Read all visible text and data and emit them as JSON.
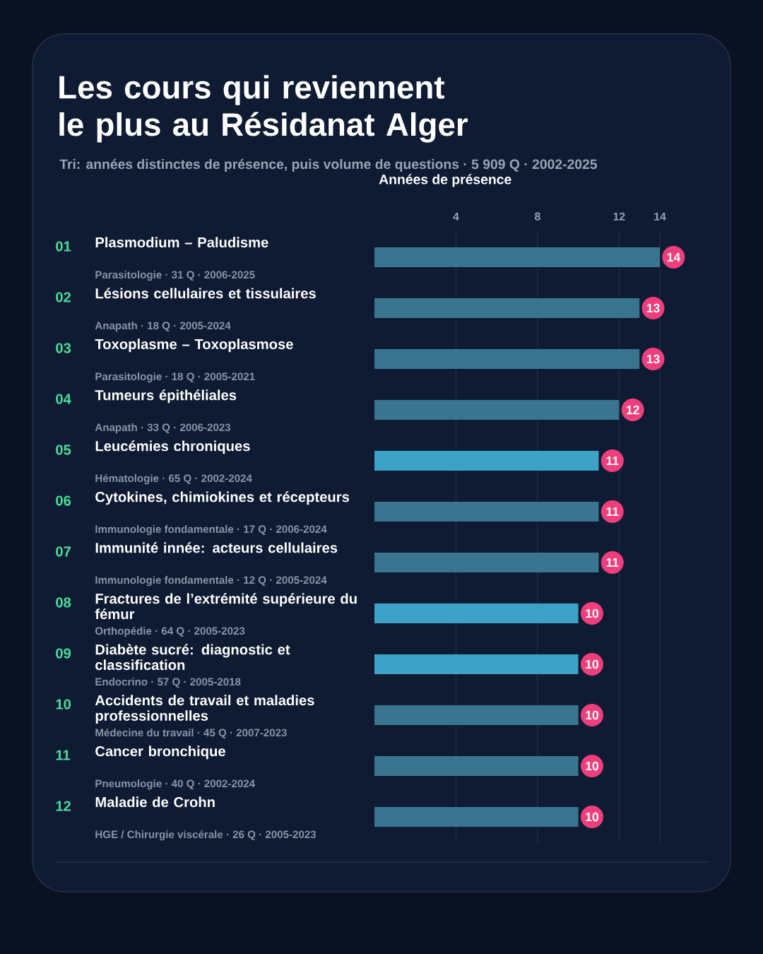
{
  "chart_data": {
    "type": "bar",
    "orientation": "horizontal",
    "title": "Les cours qui reviennent le plus au Résidanat Alger",
    "subtitle": "Tri: années distinctes de présence, puis volume de questions · 5 909 Q · 2002-2025",
    "xlabel": "Années de présence",
    "categories": [
      "Plasmodium – Paludisme",
      "Lésions cellulaires et tissulaires",
      "Toxoplasme – Toxoplasmose",
      "Tumeurs épithéliales",
      "Leucémies chroniques",
      "Cytokines, chimiokines et récepteurs",
      "Immunité innée: acteurs cellulaires",
      "Fractures de l’extrémité supérieure du fémur",
      "Diabète sucré: diagnostic et classification",
      "Accidents de travail et maladies professionnelles",
      "Cancer bronchique",
      "Maladie de Crohn"
    ],
    "values": [
      14,
      13,
      13,
      12,
      11,
      11,
      11,
      10,
      10,
      10,
      10,
      10
    ],
    "colors": [
      "#3a7590",
      "#3a7590",
      "#3a7590",
      "#3a7590",
      "#3ea2c8",
      "#3a7590",
      "#3a7590",
      "#3ea2c8",
      "#3ea2c8",
      "#3a7590",
      "#3a7590",
      "#3a7590"
    ],
    "xlim": [
      0,
      14
    ],
    "xticks": [
      4,
      8,
      12,
      14
    ],
    "grid": "x",
    "data_labels": true,
    "annotations": [
      "01",
      "Parasitologie · 31 Q · 2006-2025",
      "02",
      "Anapath · 18 Q · 2005-2024",
      "03",
      "Parasitologie · 18 Q · 2005-2021",
      "04",
      "Anapath · 33 Q · 2006-2023",
      "05",
      "Hématologie · 65 Q · 2002-2024",
      "06",
      "Immunologie fondamentale · 17 Q · 2006-2024",
      "07",
      "Immunologie fondamentale · 12 Q · 2005-2024",
      "08",
      "Orthopédie · 64 Q · 2005-2023",
      "09",
      "Endocrino · 57 Q · 2005-2018",
      "10",
      "Médecine du travail · 45 Q · 2007-2023",
      "11",
      "Pneumologie · 40 Q · 2002-2024",
      "12",
      "HGE / Chirurgie viscérale · 26 Q · 2005-2023"
    ]
  }
}
